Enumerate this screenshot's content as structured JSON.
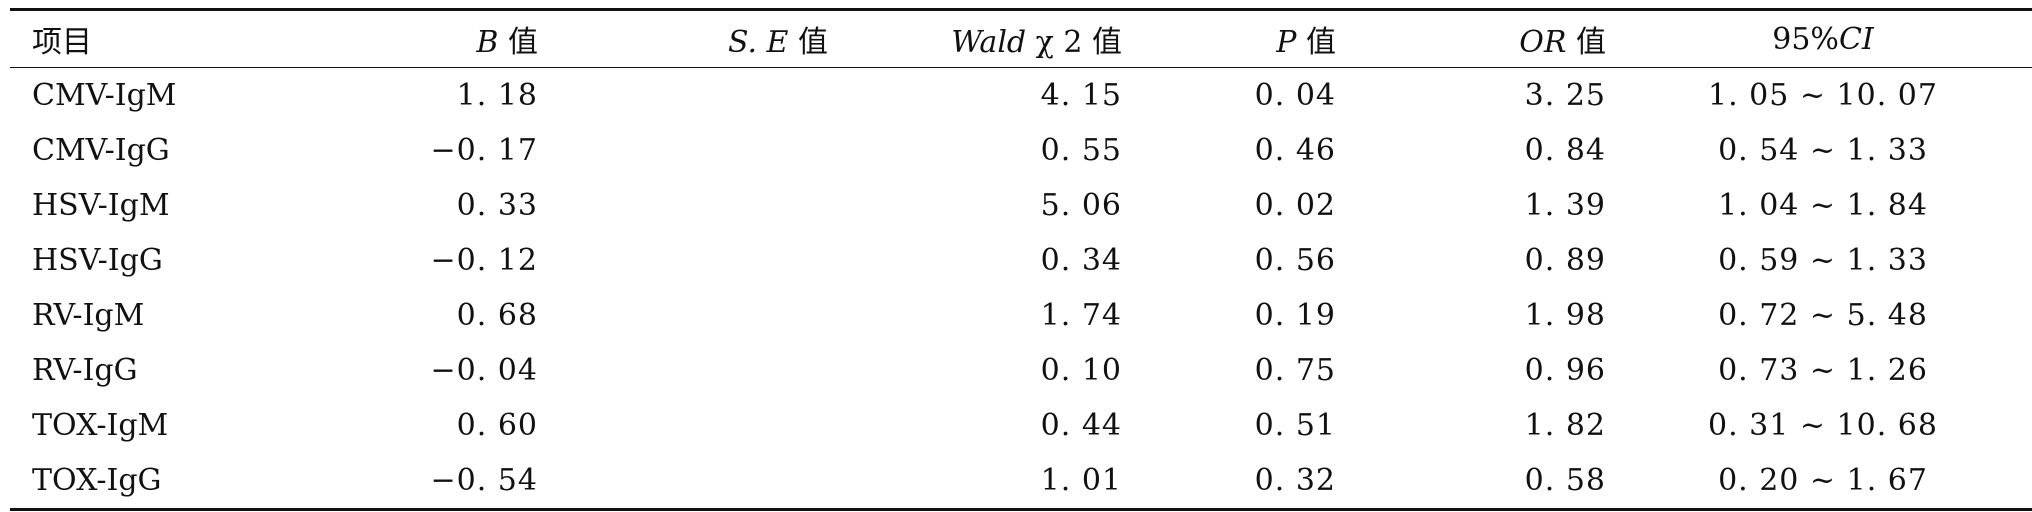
{
  "table": {
    "headers": [
      {
        "italic": "",
        "text": "项目"
      },
      {
        "italic": "B",
        "text": " 值"
      },
      {
        "italic": "S. E",
        "text": " 值"
      },
      {
        "italic": "Wald",
        "text": " χ 2 值"
      },
      {
        "italic": "P",
        "text": " 值"
      },
      {
        "italic": "OR",
        "text": " 值"
      },
      {
        "italic": "CI",
        "text": "95%"
      }
    ],
    "rows": [
      {
        "item": "CMV-IgM",
        "b": "1. 18",
        "se": "",
        "wald": "4. 15",
        "p": "0. 04",
        "or": "3. 25",
        "ci": "1. 05 ~ 10. 07"
      },
      {
        "item": "CMV-IgG",
        "b": "−0. 17",
        "se": "",
        "wald": "0. 55",
        "p": "0. 46",
        "or": "0. 84",
        "ci": "0. 54 ~ 1. 33"
      },
      {
        "item": "HSV-IgM",
        "b": "0. 33",
        "se": "",
        "wald": "5. 06",
        "p": "0. 02",
        "or": "1. 39",
        "ci": "1. 04 ~ 1. 84"
      },
      {
        "item": "HSV-IgG",
        "b": "−0. 12",
        "se": "",
        "wald": "0. 34",
        "p": "0. 56",
        "or": "0. 89",
        "ci": "0. 59 ~ 1. 33"
      },
      {
        "item": "RV-IgM",
        "b": "0. 68",
        "se": "",
        "wald": "1. 74",
        "p": "0. 19",
        "or": "1. 98",
        "ci": "0. 72 ~ 5. 48"
      },
      {
        "item": "RV-IgG",
        "b": "−0. 04",
        "se": "",
        "wald": "0. 10",
        "p": "0. 75",
        "or": "0. 96",
        "ci": "0. 73 ~ 1. 26"
      },
      {
        "item": "TOX-IgM",
        "b": "0. 60",
        "se": "",
        "wald": "0. 44",
        "p": "0. 51",
        "or": "1. 82",
        "ci": "0. 31 ~ 10. 68"
      },
      {
        "item": "TOX-IgG",
        "b": "−0. 54",
        "se": "",
        "wald": "1. 01",
        "p": "0. 32",
        "or": "0. 58",
        "ci": "0. 20 ~ 1. 67"
      }
    ]
  }
}
